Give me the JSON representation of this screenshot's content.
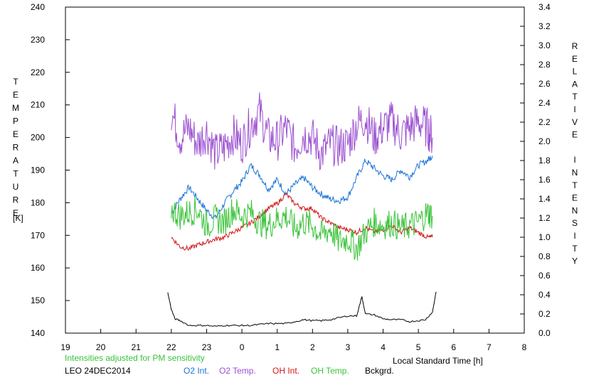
{
  "chart_data": {
    "type": "line",
    "title": "",
    "xlabel": "Local Standard Time [h]",
    "ylabel_left": "TEMPERATURE",
    "ylabel_left_unit": "[K]",
    "ylabel_right": "RELATIVE INTENSITY",
    "note": "Intensities adjusted for PM sensitivity",
    "station_label": "LEO 24DEC2014",
    "x_ticks": [
      "19",
      "20",
      "21",
      "22",
      "23",
      "0",
      "1",
      "2",
      "3",
      "4",
      "5",
      "6",
      "7",
      "8"
    ],
    "x_range_hours": [
      19,
      32
    ],
    "y_left_ticks": [
      140,
      150,
      160,
      170,
      180,
      190,
      200,
      210,
      220,
      230,
      240
    ],
    "ylim_left": [
      140,
      240
    ],
    "y_right_ticks": [
      "0.0",
      "0.2",
      "0.4",
      "0.6",
      "0.8",
      "1.0",
      "1.2",
      "1.4",
      "1.6",
      "1.8",
      "2.0",
      "2.2",
      "2.4",
      "2.6",
      "2.8",
      "3.0",
      "3.2",
      "3.4"
    ],
    "ylim_right": [
      0.0,
      3.4
    ],
    "grid": false,
    "legend_position": "bottom",
    "series": [
      {
        "name": "O2 Int.",
        "axis": "right",
        "color": "#1c73d6",
        "x": [
          22.0,
          22.25,
          22.5,
          22.75,
          23.0,
          23.25,
          23.5,
          23.75,
          24.0,
          24.25,
          24.5,
          24.75,
          25.0,
          25.25,
          25.5,
          25.75,
          26.0,
          26.25,
          26.5,
          26.75,
          27.0,
          27.25,
          27.5,
          27.75,
          28.0,
          28.25,
          28.5,
          28.75,
          29.0,
          29.25,
          29.4
        ],
        "y": [
          1.25,
          1.4,
          1.52,
          1.4,
          1.28,
          1.2,
          1.35,
          1.48,
          1.58,
          1.75,
          1.65,
          1.5,
          1.6,
          1.45,
          1.55,
          1.62,
          1.52,
          1.45,
          1.4,
          1.38,
          1.42,
          1.62,
          1.8,
          1.72,
          1.64,
          1.6,
          1.7,
          1.63,
          1.75,
          1.8,
          1.85
        ]
      },
      {
        "name": "O2 Temp.",
        "axis": "left",
        "color": "#9a4fd0",
        "x": [
          22.0,
          22.25,
          22.5,
          22.75,
          23.0,
          23.25,
          23.5,
          23.75,
          24.0,
          24.25,
          24.5,
          24.75,
          25.0,
          25.25,
          25.5,
          25.75,
          26.0,
          26.25,
          26.5,
          26.75,
          27.0,
          27.25,
          27.5,
          27.75,
          28.0,
          28.25,
          28.5,
          28.75,
          29.0,
          29.25,
          29.4
        ],
        "y": [
          208,
          200,
          203,
          198,
          202,
          195,
          197,
          201,
          198,
          204,
          208,
          200,
          199,
          203,
          197,
          201,
          200,
          195,
          198,
          197,
          198,
          204,
          206,
          200,
          203,
          205,
          201,
          203,
          205,
          203,
          200
        ]
      },
      {
        "name": "OH Int.",
        "axis": "right",
        "color": "#d01818",
        "x": [
          22.0,
          22.25,
          22.5,
          22.75,
          23.0,
          23.25,
          23.5,
          23.75,
          24.0,
          24.25,
          24.5,
          24.75,
          25.0,
          25.25,
          25.5,
          25.75,
          26.0,
          26.25,
          26.5,
          26.75,
          27.0,
          27.25,
          27.5,
          27.75,
          28.0,
          28.25,
          28.5,
          28.75,
          29.0,
          29.25,
          29.4
        ],
        "y": [
          1.0,
          0.9,
          0.88,
          0.92,
          0.95,
          0.98,
          1.0,
          1.05,
          1.1,
          1.15,
          1.22,
          1.3,
          1.35,
          1.45,
          1.35,
          1.3,
          1.3,
          1.2,
          1.15,
          1.1,
          1.08,
          1.05,
          1.1,
          1.05,
          1.08,
          1.12,
          1.05,
          1.1,
          1.05,
          1.0,
          1.0
        ]
      },
      {
        "name": "OH Temp.",
        "axis": "left",
        "color": "#39c339",
        "x": [
          22.0,
          22.25,
          22.5,
          22.75,
          23.0,
          23.25,
          23.5,
          23.75,
          24.0,
          24.25,
          24.5,
          24.75,
          25.0,
          25.25,
          25.5,
          25.75,
          26.0,
          26.25,
          26.5,
          26.75,
          27.0,
          27.25,
          27.5,
          27.75,
          28.0,
          28.25,
          28.5,
          28.75,
          29.0,
          29.25,
          29.4
        ],
        "y": [
          178,
          176,
          177,
          178,
          173,
          175,
          174,
          178,
          176,
          177,
          174,
          173,
          175,
          176,
          172,
          174,
          173,
          170,
          172,
          168,
          169,
          166,
          171,
          174,
          173,
          174,
          172,
          173,
          174,
          177,
          176
        ]
      },
      {
        "name": "Bckgrd.",
        "axis": "right",
        "color": "#000000",
        "x": [
          21.9,
          22.0,
          22.1,
          22.25,
          22.5,
          22.75,
          23.0,
          23.25,
          23.5,
          23.75,
          24.0,
          24.25,
          24.5,
          24.75,
          25.0,
          25.25,
          25.5,
          25.75,
          26.0,
          26.25,
          26.5,
          26.75,
          27.0,
          27.25,
          27.4,
          27.5,
          27.75,
          28.0,
          28.25,
          28.5,
          28.75,
          29.0,
          29.2,
          29.4,
          29.5
        ],
        "y": [
          0.42,
          0.25,
          0.15,
          0.13,
          0.08,
          0.08,
          0.08,
          0.07,
          0.08,
          0.08,
          0.08,
          0.08,
          0.09,
          0.1,
          0.1,
          0.1,
          0.12,
          0.14,
          0.13,
          0.13,
          0.14,
          0.16,
          0.18,
          0.18,
          0.38,
          0.2,
          0.19,
          0.15,
          0.14,
          0.14,
          0.12,
          0.13,
          0.14,
          0.22,
          0.43
        ]
      }
    ]
  },
  "legend": [
    {
      "label": "O2 Int.",
      "color": "#1c73d6"
    },
    {
      "label": "O2 Temp.",
      "color": "#9a4fd0"
    },
    {
      "label": "OH Int.",
      "color": "#d01818"
    },
    {
      "label": "OH Temp.",
      "color": "#39c339"
    },
    {
      "label": "Bckgrd.",
      "color": "#000000"
    }
  ],
  "colors": {
    "note": "#39c339",
    "axes": "#000000"
  }
}
